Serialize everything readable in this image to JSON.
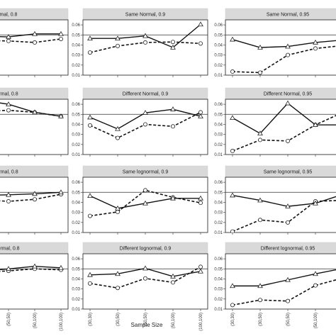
{
  "figure": {
    "xlabel": "Sample Size",
    "reference_line": 0.05
  },
  "chart_data": {
    "type": "line",
    "x_tick_labels": [
      "(30,30)",
      "(30,50)",
      "(50,50)",
      "(50,100)",
      "(100,100)"
    ],
    "y_tick_labels": [
      "0.01",
      "0.02",
      "0.03",
      "0.04",
      "0.05",
      "0.06"
    ],
    "ylim": [
      0.01,
      0.065
    ],
    "marker_triangle_color": "#222222",
    "marker_circle_color": "#222222",
    "panels": [
      {
        "title": "mal, 0.8",
        "triangle": [
          0.0465,
          0.049,
          0.048,
          0.051,
          0.051
        ],
        "circle": [
          0.046,
          0.0445,
          0.044,
          0.0425,
          0.046
        ]
      },
      {
        "title": "Same Normal, 0.9",
        "triangle": [
          0.0465,
          0.0465,
          0.049,
          0.0375,
          0.0605
        ],
        "circle": [
          0.0325,
          0.039,
          0.0425,
          0.043,
          0.0415
        ]
      },
      {
        "title": "Same Normal, 0.95",
        "triangle": [
          0.0455,
          0.0375,
          0.0385,
          0.0425,
          0.045
        ],
        "circle": [
          0.0135,
          0.0125,
          0.03,
          0.0365,
          0.0395
        ]
      },
      {
        "title": "rmal, 0.8",
        "triangle": [
          0.066,
          0.064,
          0.06,
          0.052,
          0.048
        ],
        "circle": [
          0.052,
          0.053,
          0.054,
          0.052,
          0.048
        ]
      },
      {
        "title": "Different Normal, 0.9",
        "triangle": [
          0.047,
          0.0355,
          0.0515,
          0.055,
          0.048
        ],
        "circle": [
          0.039,
          0.0265,
          0.04,
          0.038,
          0.052
        ]
      },
      {
        "title": "Different Normal, 0.95",
        "triangle": [
          0.0465,
          0.031,
          0.061,
          0.0395,
          0.0395
        ],
        "circle": [
          0.0135,
          0.0245,
          0.0235,
          0.0395,
          0.052
        ]
      },
      {
        "title": "rmal, 0.8",
        "triangle": [
          0.047,
          0.047,
          0.0475,
          0.0485,
          0.05
        ],
        "circle": [
          0.044,
          0.0425,
          0.041,
          0.043,
          0.048
        ]
      },
      {
        "title": "Same lognormal, 0.9",
        "triangle": [
          0.0465,
          0.034,
          0.039,
          0.044,
          0.044
        ],
        "circle": [
          0.0265,
          0.0305,
          0.052,
          0.045,
          0.0395
        ]
      },
      {
        "title": "Same lognormal, 0.95",
        "triangle": [
          0.047,
          0.042,
          0.036,
          0.039,
          0.048
        ],
        "circle": [
          0.011,
          0.0225,
          0.02,
          0.041,
          0.042
        ]
      },
      {
        "title": "ormal, 0.8",
        "triangle": [
          0.047,
          0.0475,
          0.05,
          0.0525,
          0.051
        ],
        "circle": [
          0.046,
          0.0465,
          0.048,
          0.05,
          0.049
        ]
      },
      {
        "title": "Different lognormal, 0.9",
        "triangle": [
          0.044,
          0.045,
          0.0505,
          0.0425,
          0.0475
        ],
        "circle": [
          0.0355,
          0.031,
          0.0405,
          0.0365,
          0.052
        ]
      },
      {
        "title": "Different lognormal, 0.95",
        "triangle": [
          0.033,
          0.033,
          0.039,
          0.045,
          0.0505
        ],
        "circle": [
          0.014,
          0.019,
          0.018,
          0.0335,
          0.041
        ]
      }
    ]
  }
}
